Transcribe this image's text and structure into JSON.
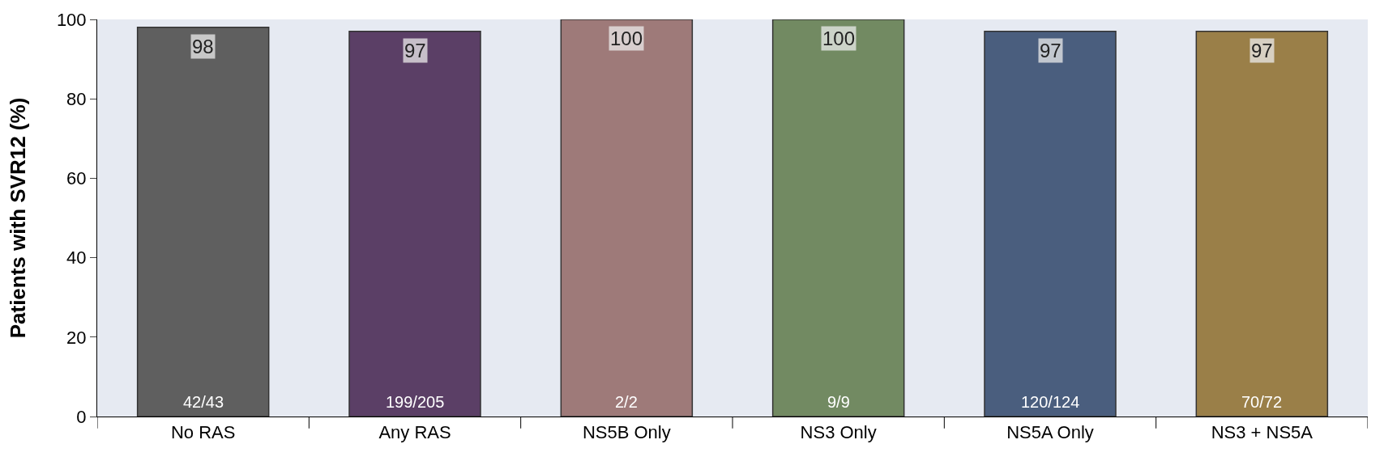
{
  "chart_data": {
    "type": "bar",
    "ylabel": "Patients with SVR12 (%)",
    "categories": [
      "No RAS",
      "Any RAS",
      "NS5B Only",
      "NS3 Only",
      "NS5A Only",
      "NS3 + NS5A"
    ],
    "values": [
      98,
      97,
      100,
      100,
      97,
      97
    ],
    "colors": [
      "#5f5f5f",
      "#5b3f66",
      "#9e7a79",
      "#728a62",
      "#4a5e7e",
      "#9a7f48"
    ],
    "data_labels": true,
    "ylim": [
      0,
      100
    ],
    "yticks": [
      0,
      20,
      40,
      60,
      80,
      100
    ],
    "grid": false,
    "annotations": [
      "42/43",
      "199/205",
      "2/2",
      "9/9",
      "120/124",
      "70/72"
    ]
  }
}
